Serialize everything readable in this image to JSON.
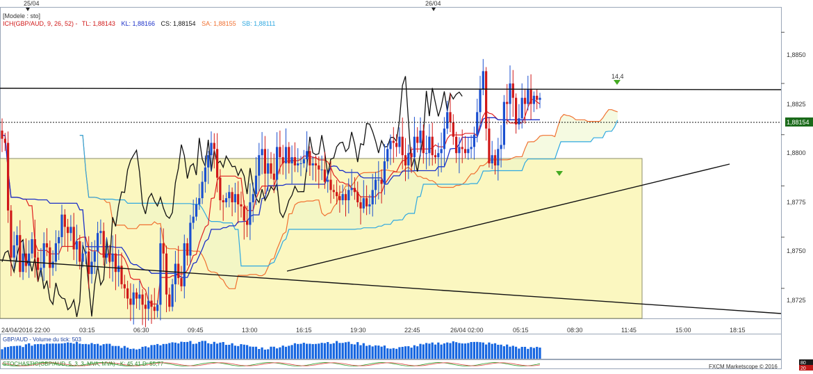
{
  "header": {
    "date_markers": [
      "25/04",
      "26/04"
    ],
    "model_label": "[Modele : sto]",
    "legend": [
      {
        "text": "ICH(GBP/AUD, 9, 26, 52) -",
        "color": "#d01818"
      },
      {
        "text": "TL: 1,88143",
        "color": "#d01818"
      },
      {
        "text": "KL: 1,88166",
        "color": "#1a2fc8"
      },
      {
        "text": "CS: 1,88154",
        "color": "#111111"
      },
      {
        "text": "SA: 1,88155",
        "color": "#f07030"
      },
      {
        "text": "SB: 1,88111",
        "color": "#2ea8e0"
      }
    ]
  },
  "chart_data": {
    "type": "candlestick",
    "pair": "GBP/AUD",
    "y_axis": {
      "ticks": [
        "1,8850",
        "1,8825",
        "1,8800",
        "1,8775",
        "1,8750",
        "1,8725"
      ],
      "range": [
        1.871,
        1.8862
      ]
    },
    "x_axis": {
      "ticks": [
        "24/04/2016 22:00",
        "03:15",
        "06:30",
        "09:45",
        "13:00",
        "16:15",
        "19:30",
        "22:45",
        "26/04 02:00",
        "05:15",
        "08:30",
        "11:45",
        "15:00",
        "18:15"
      ]
    },
    "current_price": "1,88154",
    "annotation": "14,4",
    "closes": [
      1.8798,
      1.8796,
      1.8763,
      1.874,
      1.8746,
      1.8751,
      1.8733,
      1.8742,
      1.8736,
      1.8742,
      1.8749,
      1.874,
      1.8734,
      1.8735,
      1.8747,
      1.8745,
      1.8735,
      1.8738,
      1.8747,
      1.875,
      1.8761,
      1.8755,
      1.8752,
      1.8755,
      1.8744,
      1.8748,
      1.8738,
      1.8742,
      1.8743,
      1.8732,
      1.8738,
      1.8743,
      1.8752,
      1.8753,
      1.874,
      1.8742,
      1.8738,
      1.8742,
      1.8733,
      1.8736,
      1.8727,
      1.8725,
      1.872,
      1.8717,
      1.8723,
      1.872,
      1.8722,
      1.8717,
      1.8715,
      1.8719,
      1.8716,
      1.8714,
      1.8717,
      1.8747,
      1.8742,
      1.8722,
      1.8716,
      1.8727,
      1.8737,
      1.873,
      1.8726,
      1.8747,
      1.8741,
      1.8757,
      1.876,
      1.8766,
      1.8769,
      1.8777,
      1.8784,
      1.879,
      1.8796,
      1.8793,
      1.8779,
      1.8768,
      1.8767,
      1.8769,
      1.8772,
      1.8767,
      1.8771,
      1.8766,
      1.8765,
      1.8758,
      1.8756,
      1.8767,
      1.8771,
      1.878,
      1.879,
      1.8793,
      1.8781,
      1.8786,
      1.8781,
      1.8778,
      1.8794,
      1.8789,
      1.8786,
      1.8794,
      1.8786,
      1.8789,
      1.8785,
      1.8786,
      1.8786,
      1.8788,
      1.8792,
      1.8785,
      1.8786,
      1.8785,
      1.8783,
      1.8783,
      1.8777,
      1.8778,
      1.8773,
      1.8772,
      1.877,
      1.8768,
      1.8771,
      1.8768,
      1.8773,
      1.8774,
      1.8772,
      1.8767,
      1.8764,
      1.8769,
      1.8765,
      1.8766,
      1.8773,
      1.8778,
      1.8778,
      1.8776,
      1.8787,
      1.8793,
      1.8797,
      1.8796,
      1.8794,
      1.8799,
      1.879,
      1.8785,
      1.8791,
      1.8789,
      1.8799,
      1.8796,
      1.8802,
      1.8791,
      1.8791,
      1.8799,
      1.879,
      1.8789,
      1.8791,
      1.8793,
      1.8803,
      1.8811,
      1.8806,
      1.8799,
      1.8791,
      1.8794,
      1.8793,
      1.8791,
      1.8793,
      1.8794,
      1.88,
      1.8811,
      1.8822,
      1.8831,
      1.8803,
      1.8786,
      1.879,
      1.8785,
      1.8793,
      1.8795,
      1.8816,
      1.8815,
      1.8825,
      1.8818,
      1.8805,
      1.8808,
      1.8818,
      1.8815,
      1.8822,
      1.8815,
      1.8819,
      1.8817,
      1.8818
    ],
    "volume_label": "GBP/AUD - Volume du tick: 503",
    "stochastic_label": "STOCHASTIC(GBP/AUD, 5, 3, 3, MVA, MVA) - K: 45,41 D: 55,77",
    "stochastic_levels": [
      "80",
      "20"
    ],
    "watermark": "FXCM Marketscope © 2016"
  },
  "colors": {
    "bull": "#1a4fd0",
    "bear": "#d01818",
    "tenkan": "#e02020",
    "kijun": "#1a2fc8",
    "chikou": "#111111",
    "senkou_a": "#f07030",
    "senkou_b": "#2ea8e0",
    "cloud": "#ecf5c8",
    "box": "#fbf7c0",
    "volume": "#1565e0",
    "stoch_k": "#2aa02a",
    "stoch_d": "#e04040"
  }
}
